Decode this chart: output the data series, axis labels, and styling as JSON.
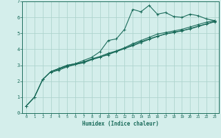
{
  "title": "",
  "xlabel": "Humidex (Indice chaleur)",
  "bg_color": "#d4eeeb",
  "line_color": "#1a6b5a",
  "grid_color": "#aed4ce",
  "xlim": [
    -0.5,
    23.5
  ],
  "ylim": [
    0,
    7
  ],
  "xticks": [
    0,
    1,
    2,
    3,
    4,
    5,
    6,
    7,
    8,
    9,
    10,
    11,
    12,
    13,
    14,
    15,
    16,
    17,
    18,
    19,
    20,
    21,
    22,
    23
  ],
  "yticks": [
    0,
    1,
    2,
    3,
    4,
    5,
    6,
    7
  ],
  "line1_x": [
    0,
    1,
    2,
    3,
    4,
    5,
    6,
    7,
    8,
    9,
    10,
    11,
    12,
    13,
    14,
    15,
    16,
    17,
    18,
    19,
    20,
    21,
    22,
    23
  ],
  "line1_y": [
    0.45,
    1.0,
    2.1,
    2.6,
    2.8,
    3.0,
    3.1,
    3.3,
    3.5,
    3.85,
    4.55,
    4.65,
    5.25,
    6.5,
    6.35,
    6.75,
    6.2,
    6.3,
    6.05,
    6.0,
    6.2,
    6.1,
    5.9,
    5.8
  ],
  "line2_x": [
    0,
    1,
    2,
    3,
    4,
    5,
    6,
    7,
    8,
    9,
    10,
    11,
    12,
    13,
    14,
    15,
    16,
    17,
    18,
    19,
    20,
    21,
    22,
    23
  ],
  "line2_y": [
    0.45,
    1.0,
    2.1,
    2.6,
    2.8,
    3.0,
    3.1,
    3.2,
    3.4,
    3.55,
    3.75,
    3.9,
    4.1,
    4.35,
    4.55,
    4.75,
    4.95,
    5.05,
    5.15,
    5.25,
    5.4,
    5.55,
    5.7,
    5.8
  ],
  "line3_x": [
    0,
    1,
    2,
    3,
    4,
    5,
    6,
    7,
    8,
    9,
    10,
    11,
    12,
    13,
    14,
    15,
    16,
    17,
    18,
    19,
    20,
    21,
    22,
    23
  ],
  "line3_y": [
    0.45,
    1.0,
    2.1,
    2.6,
    2.75,
    2.95,
    3.05,
    3.15,
    3.35,
    3.5,
    3.7,
    3.85,
    4.05,
    4.28,
    4.48,
    4.65,
    4.82,
    4.95,
    5.05,
    5.15,
    5.3,
    5.45,
    5.6,
    5.75
  ],
  "line4_x": [
    3,
    4,
    5,
    6,
    7,
    8,
    9,
    10,
    11,
    12,
    13,
    14,
    15,
    16,
    17,
    18,
    19,
    20,
    21,
    22,
    23
  ],
  "line4_y": [
    2.55,
    2.7,
    2.9,
    3.05,
    3.2,
    3.38,
    3.52,
    3.65,
    3.88,
    4.05,
    4.22,
    4.42,
    4.62,
    4.8,
    4.97,
    5.07,
    5.17,
    5.27,
    5.43,
    5.58,
    5.72
  ]
}
